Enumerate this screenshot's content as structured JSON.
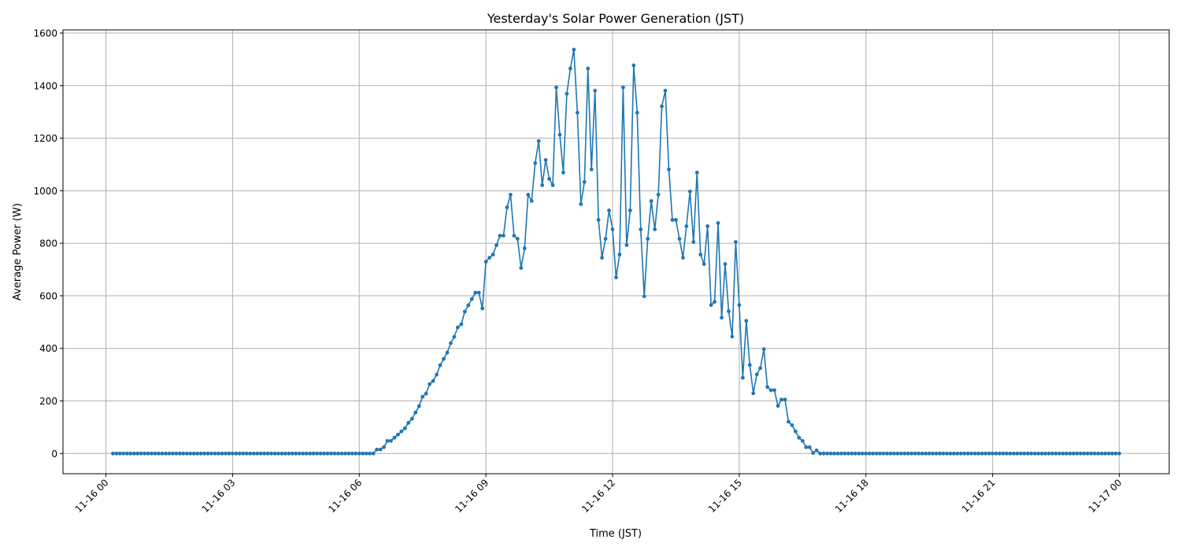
{
  "chart_data": {
    "type": "line",
    "title": "Yesterday's Solar Power Generation (JST)",
    "xlabel": "Time (JST)",
    "ylabel": "Average Power (W)",
    "x_ticks": [
      "11-16 00",
      "11-16 03",
      "11-16 06",
      "11-16 09",
      "11-16 12",
      "11-16 15",
      "11-16 18",
      "11-16 21",
      "11-17 00"
    ],
    "y_ticks": [
      0,
      200,
      400,
      600,
      800,
      1000,
      1200,
      1400,
      1600
    ],
    "ylim": [
      -77,
      1612
    ],
    "xlim": [
      "11-15 22:59",
      "11-17 01:11"
    ],
    "grid": true,
    "marker": "circle",
    "color": "#1f77b4",
    "series": [
      {
        "start": "11-16 00:10",
        "interval_minutes": 5,
        "values": [
          0,
          0,
          0,
          0,
          0,
          0,
          0,
          0,
          0,
          0,
          0,
          0,
          0,
          0,
          0,
          0,
          0,
          0,
          0,
          0,
          0,
          0,
          0,
          0,
          0,
          0,
          0,
          0,
          0,
          0,
          0,
          0,
          0,
          0,
          0,
          0,
          0,
          0,
          0,
          0,
          0,
          0,
          0,
          0,
          0,
          0,
          0,
          0,
          0,
          0,
          0,
          0,
          0,
          0,
          0,
          0,
          0,
          0,
          0,
          0,
          0,
          0,
          0,
          0,
          0,
          0,
          0,
          0,
          0,
          0,
          0,
          0,
          0,
          0,
          0,
          15,
          15,
          24,
          48,
          48,
          60,
          72,
          84,
          96,
          117,
          132,
          156,
          180,
          216,
          228,
          264,
          276,
          300,
          336,
          360,
          384,
          420,
          444,
          480,
          492,
          540,
          564,
          588,
          612,
          612,
          552,
          730,
          745,
          757,
          793,
          829,
          829,
          937,
          985,
          829,
          817,
          706,
          781,
          985,
          961,
          1105,
          1189,
          1021,
          1117,
          1045,
          1021,
          1393,
          1213,
          1069,
          1369,
          1465,
          1537,
          1297,
          949,
          1033,
          1465,
          1081,
          1381,
          889,
          745,
          817,
          925,
          853,
          670,
          757,
          1393,
          793,
          925,
          1477,
          1297,
          853,
          598,
          817,
          961,
          853,
          985,
          1321,
          1381,
          1081,
          889,
          889,
          817,
          745,
          865,
          997,
          805,
          1069,
          757,
          721,
          865,
          565,
          577,
          877,
          517,
          721,
          541,
          445,
          805,
          565,
          288,
          505,
          337,
          229,
          301,
          325,
          397,
          253,
          241,
          241,
          181,
          205,
          205,
          121,
          108,
          84,
          60,
          48,
          24,
          24,
          2,
          12,
          0,
          0,
          0,
          0,
          0,
          0,
          0,
          0,
          0,
          0,
          0,
          0,
          0,
          0,
          0,
          0,
          0,
          0,
          0,
          0,
          0,
          0,
          0,
          0,
          0,
          0,
          0,
          0,
          0,
          0,
          0,
          0,
          0,
          0,
          0,
          0,
          0,
          0,
          0,
          0,
          0,
          0,
          0,
          0,
          0,
          0,
          0,
          0,
          0,
          0,
          0,
          0,
          0,
          0,
          0,
          0,
          0,
          0,
          0,
          0,
          0,
          0,
          0,
          0,
          0,
          0,
          0,
          0,
          0,
          0,
          0,
          0,
          0,
          0,
          0,
          0,
          0,
          0,
          0,
          0,
          0,
          0,
          0,
          0,
          0,
          0
        ]
      }
    ]
  }
}
